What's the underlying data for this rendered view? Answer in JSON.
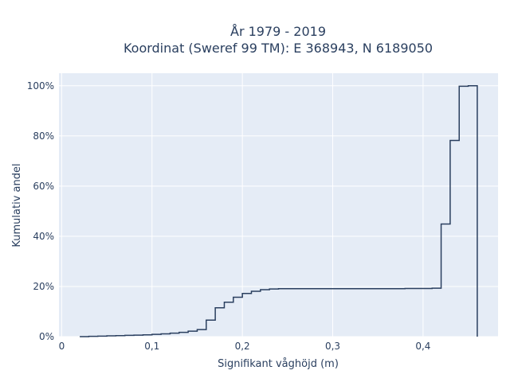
{
  "chart_data": {
    "type": "line",
    "subtype": "cumulative-step",
    "title_line1": "År 1979 - 2019",
    "title_line2": "Koordinat (Sweref 99 TM): E 368943, N 6189050",
    "xlabel": "Signifikant våghöjd (m)",
    "ylabel": "Kumulativ andel",
    "xlim": [
      -0.003,
      0.483
    ],
    "ylim": [
      0,
      1.05
    ],
    "x_ticks": [
      0,
      0.1,
      0.2,
      0.3,
      0.4
    ],
    "x_tick_labels": [
      "0",
      "0,1",
      "0,2",
      "0,3",
      "0,4"
    ],
    "y_ticks": [
      0,
      0.2,
      0.4,
      0.6,
      0.8,
      1.0
    ],
    "y_tick_labels": [
      "0%",
      "20%",
      "40%",
      "60%",
      "80%",
      "100%"
    ],
    "grid": true,
    "colors": {
      "plot_bg": "#e5ecf6",
      "grid": "#ffffff",
      "line": "#2a3f5f",
      "text": "#2a3f5f"
    },
    "series": [
      {
        "x": [
          0.02,
          0.03,
          0.04,
          0.05,
          0.06,
          0.07,
          0.08,
          0.09,
          0.1,
          0.11,
          0.12,
          0.13,
          0.14,
          0.15,
          0.16,
          0.17,
          0.18,
          0.19,
          0.2,
          0.21,
          0.22,
          0.23,
          0.24,
          0.28,
          0.33,
          0.38,
          0.41,
          0.42,
          0.43,
          0.44,
          0.45,
          0.46
        ],
        "y": [
          0.0,
          0.001,
          0.002,
          0.003,
          0.004,
          0.005,
          0.006,
          0.007,
          0.009,
          0.011,
          0.014,
          0.017,
          0.022,
          0.028,
          0.066,
          0.115,
          0.137,
          0.157,
          0.172,
          0.181,
          0.187,
          0.19,
          0.191,
          0.191,
          0.191,
          0.192,
          0.193,
          0.449,
          0.782,
          0.998,
          1.0,
          0.0
        ]
      }
    ]
  }
}
